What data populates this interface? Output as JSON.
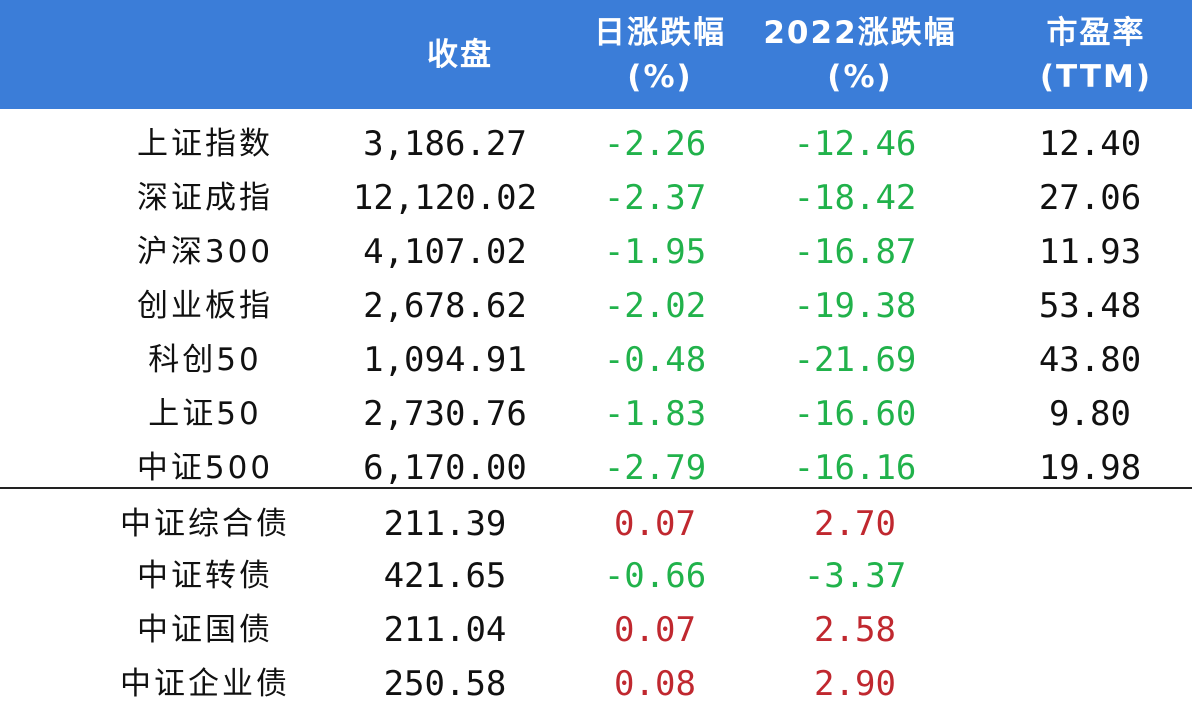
{
  "header": {
    "col_close": "收盘",
    "col_daily_line1": "日涨跌幅",
    "col_daily_line2": "(%)",
    "col_ytd_line1": "2022涨跌幅",
    "col_ytd_line2": "(%)",
    "col_pe_line1": "市盈率",
    "col_pe_line2": "(TTM)"
  },
  "colors": {
    "header_bg": "#3b7dd8",
    "positive": "#c0282f",
    "negative": "#21b24b"
  },
  "rows": [
    {
      "name": "上证指数",
      "close": "3,186.27",
      "daily": "-2.26",
      "ytd": "-12.46",
      "pe": "12.40"
    },
    {
      "name": "深证成指",
      "close": "12,120.02",
      "daily": "-2.37",
      "ytd": "-18.42",
      "pe": "27.06"
    },
    {
      "name": "沪深300",
      "close": "4,107.02",
      "daily": "-1.95",
      "ytd": "-16.87",
      "pe": "11.93"
    },
    {
      "name": "创业板指",
      "close": "2,678.62",
      "daily": "-2.02",
      "ytd": "-19.38",
      "pe": "53.48"
    },
    {
      "name": "科创50",
      "close": "1,094.91",
      "daily": "-0.48",
      "ytd": "-21.69",
      "pe": "43.80"
    },
    {
      "name": "上证50",
      "close": "2,730.76",
      "daily": "-1.83",
      "ytd": "-16.60",
      "pe": "9.80"
    },
    {
      "name": "中证500",
      "close": "6,170.00",
      "daily": "-2.79",
      "ytd": "-16.16",
      "pe": "19.98"
    },
    {
      "name": "中证综合债",
      "close": "211.39",
      "daily": "0.07",
      "ytd": "2.70",
      "pe": ""
    },
    {
      "name": "中证转债",
      "close": "421.65",
      "daily": "-0.66",
      "ytd": "-3.37",
      "pe": ""
    },
    {
      "name": "中证国债",
      "close": "211.04",
      "daily": "0.07",
      "ytd": "2.58",
      "pe": ""
    },
    {
      "name": "中证企业债",
      "close": "250.58",
      "daily": "0.08",
      "ytd": "2.90",
      "pe": ""
    }
  ]
}
